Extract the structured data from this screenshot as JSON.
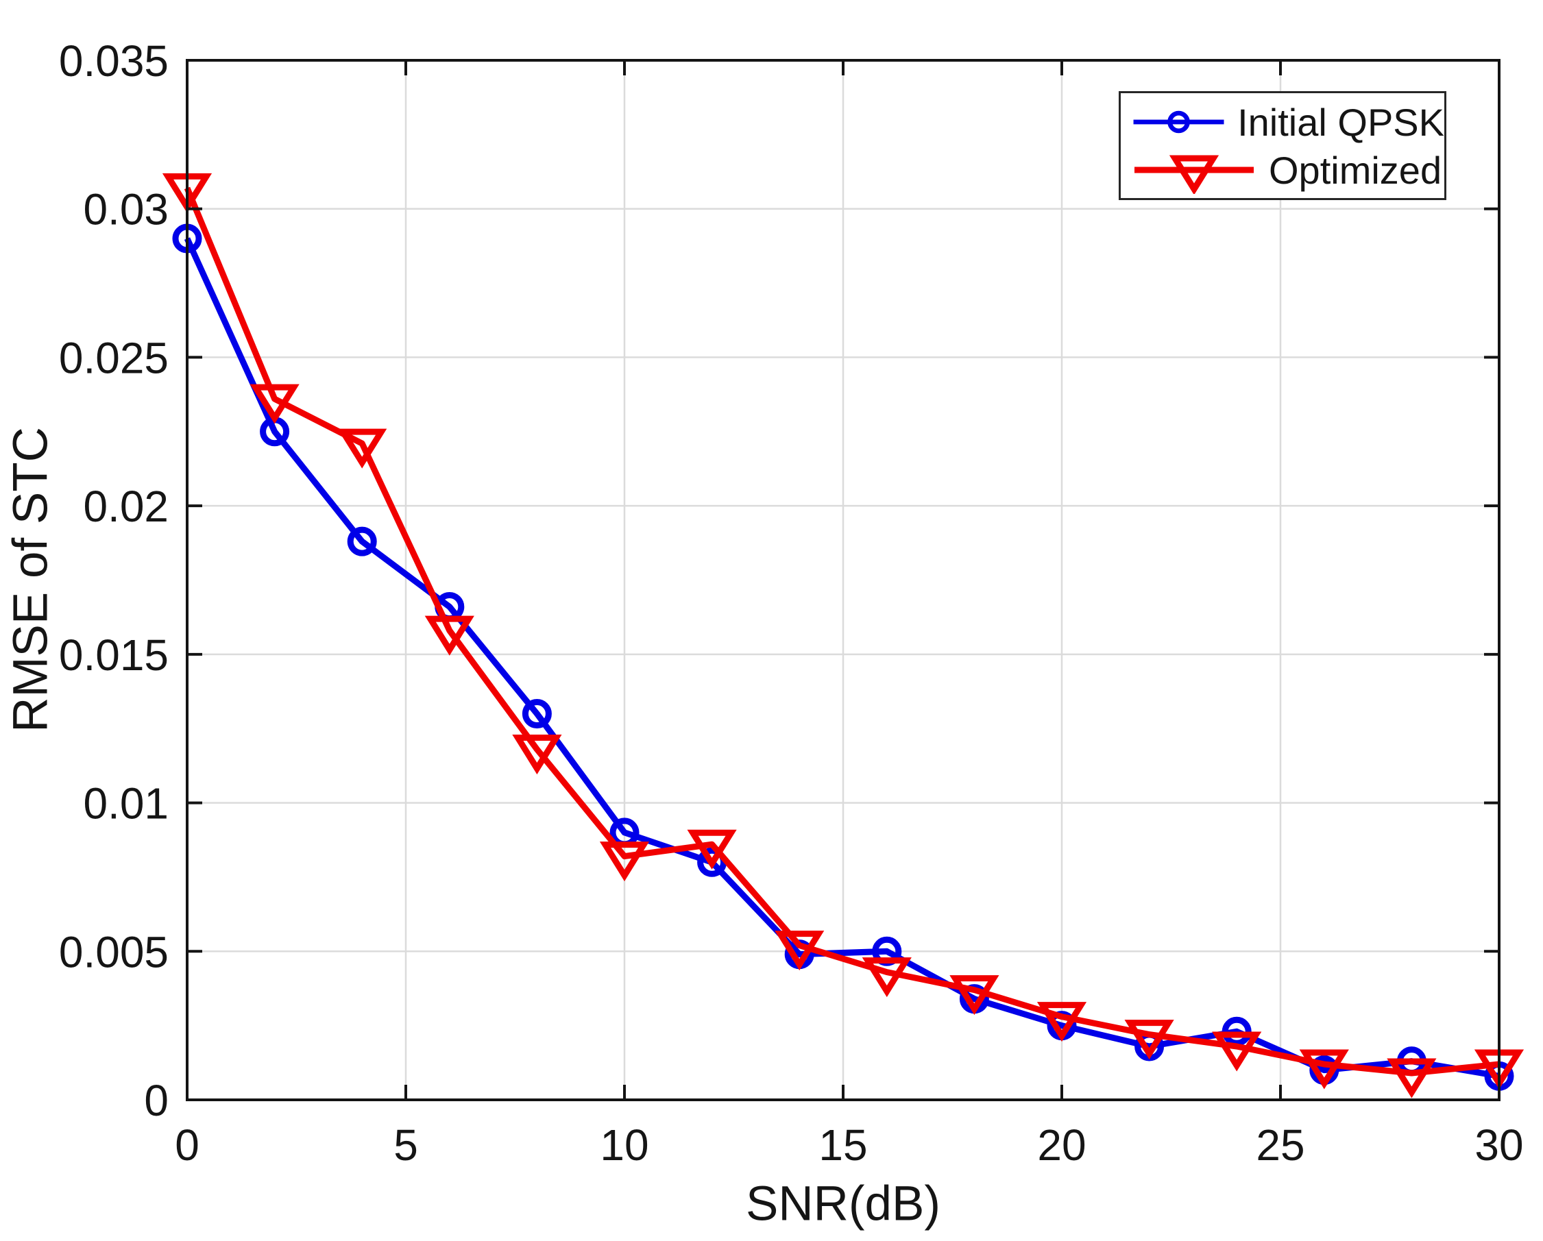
{
  "figure": {
    "background": "#ffffff",
    "frame_color": "#141414",
    "grid_color": "#dbdbdb",
    "text_color": "#151515"
  },
  "chart_data": {
    "type": "line",
    "title": "",
    "xlabel": "SNR(dB)",
    "ylabel": "RMSE of STC",
    "xlim": [
      0,
      30
    ],
    "ylim": [
      0,
      0.035
    ],
    "xticks": [
      0,
      5,
      10,
      15,
      20,
      25,
      30
    ],
    "xtick_labels": [
      "0",
      "5",
      "10",
      "15",
      "20",
      "25",
      "30"
    ],
    "yticks": [
      0,
      0.005,
      0.01,
      0.015,
      0.02,
      0.025,
      0.03,
      0.035
    ],
    "ytick_labels": [
      "0",
      "0.005",
      "0.01",
      "0.015",
      "0.02",
      "0.025",
      "0.03",
      "0.035"
    ],
    "grid": true,
    "legend_position": "top-right",
    "x": [
      0,
      2,
      4,
      6,
      8,
      10,
      12,
      14,
      16,
      18,
      20,
      22,
      24,
      26,
      28,
      30
    ],
    "series": [
      {
        "name": "Initial QPSK",
        "color": "#0000e8",
        "marker": "circle",
        "values": [
          0.029,
          0.0225,
          0.0188,
          0.0166,
          0.013,
          0.009,
          0.008,
          0.0049,
          0.005,
          0.0034,
          0.0025,
          0.0018,
          0.0023,
          0.001,
          0.0013,
          0.0008
        ]
      },
      {
        "name": "Optimized",
        "color": "#f10000",
        "marker": "triangle-down",
        "values": [
          0.0307,
          0.0236,
          0.0221,
          0.0158,
          0.0118,
          0.0082,
          0.0086,
          0.0052,
          0.0043,
          0.0037,
          0.0028,
          0.0022,
          0.0018,
          0.0012,
          0.0009,
          0.0012
        ]
      }
    ]
  }
}
